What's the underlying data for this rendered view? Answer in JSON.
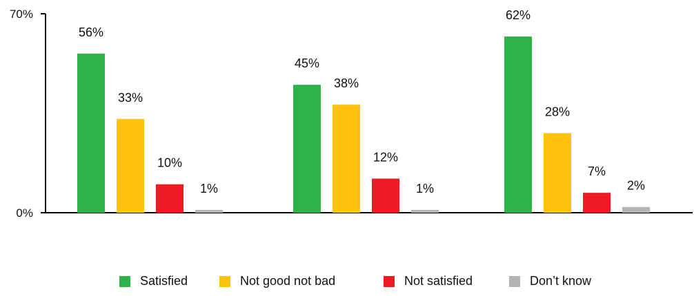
{
  "chart_data": {
    "type": "bar",
    "categories": [
      "",
      "",
      ""
    ],
    "series": [
      {
        "name": "Satisfied",
        "color": "#2db34a",
        "values": [
          56,
          45,
          62
        ]
      },
      {
        "name": "Not good not bad",
        "color": "#ffc20e",
        "values": [
          33,
          38,
          28
        ]
      },
      {
        "name": "Not satisfied",
        "color": "#ed1c24",
        "values": [
          10,
          12,
          7
        ]
      },
      {
        "name": "Don’t know",
        "color": "#b3b3b3",
        "values": [
          1,
          1,
          2
        ]
      }
    ],
    "data_labels": [
      [
        "56%",
        "45%",
        "62%"
      ],
      [
        "33%",
        "38%",
        "28%"
      ],
      [
        "10%",
        "12%",
        "7%"
      ],
      [
        "1%",
        "1%",
        "2%"
      ]
    ],
    "yticks": [
      "0%",
      "70%"
    ],
    "ylim": [
      0,
      70
    ],
    "title": "",
    "xlabel": "",
    "ylabel": "",
    "legend_position": "bottom",
    "grid": false
  }
}
